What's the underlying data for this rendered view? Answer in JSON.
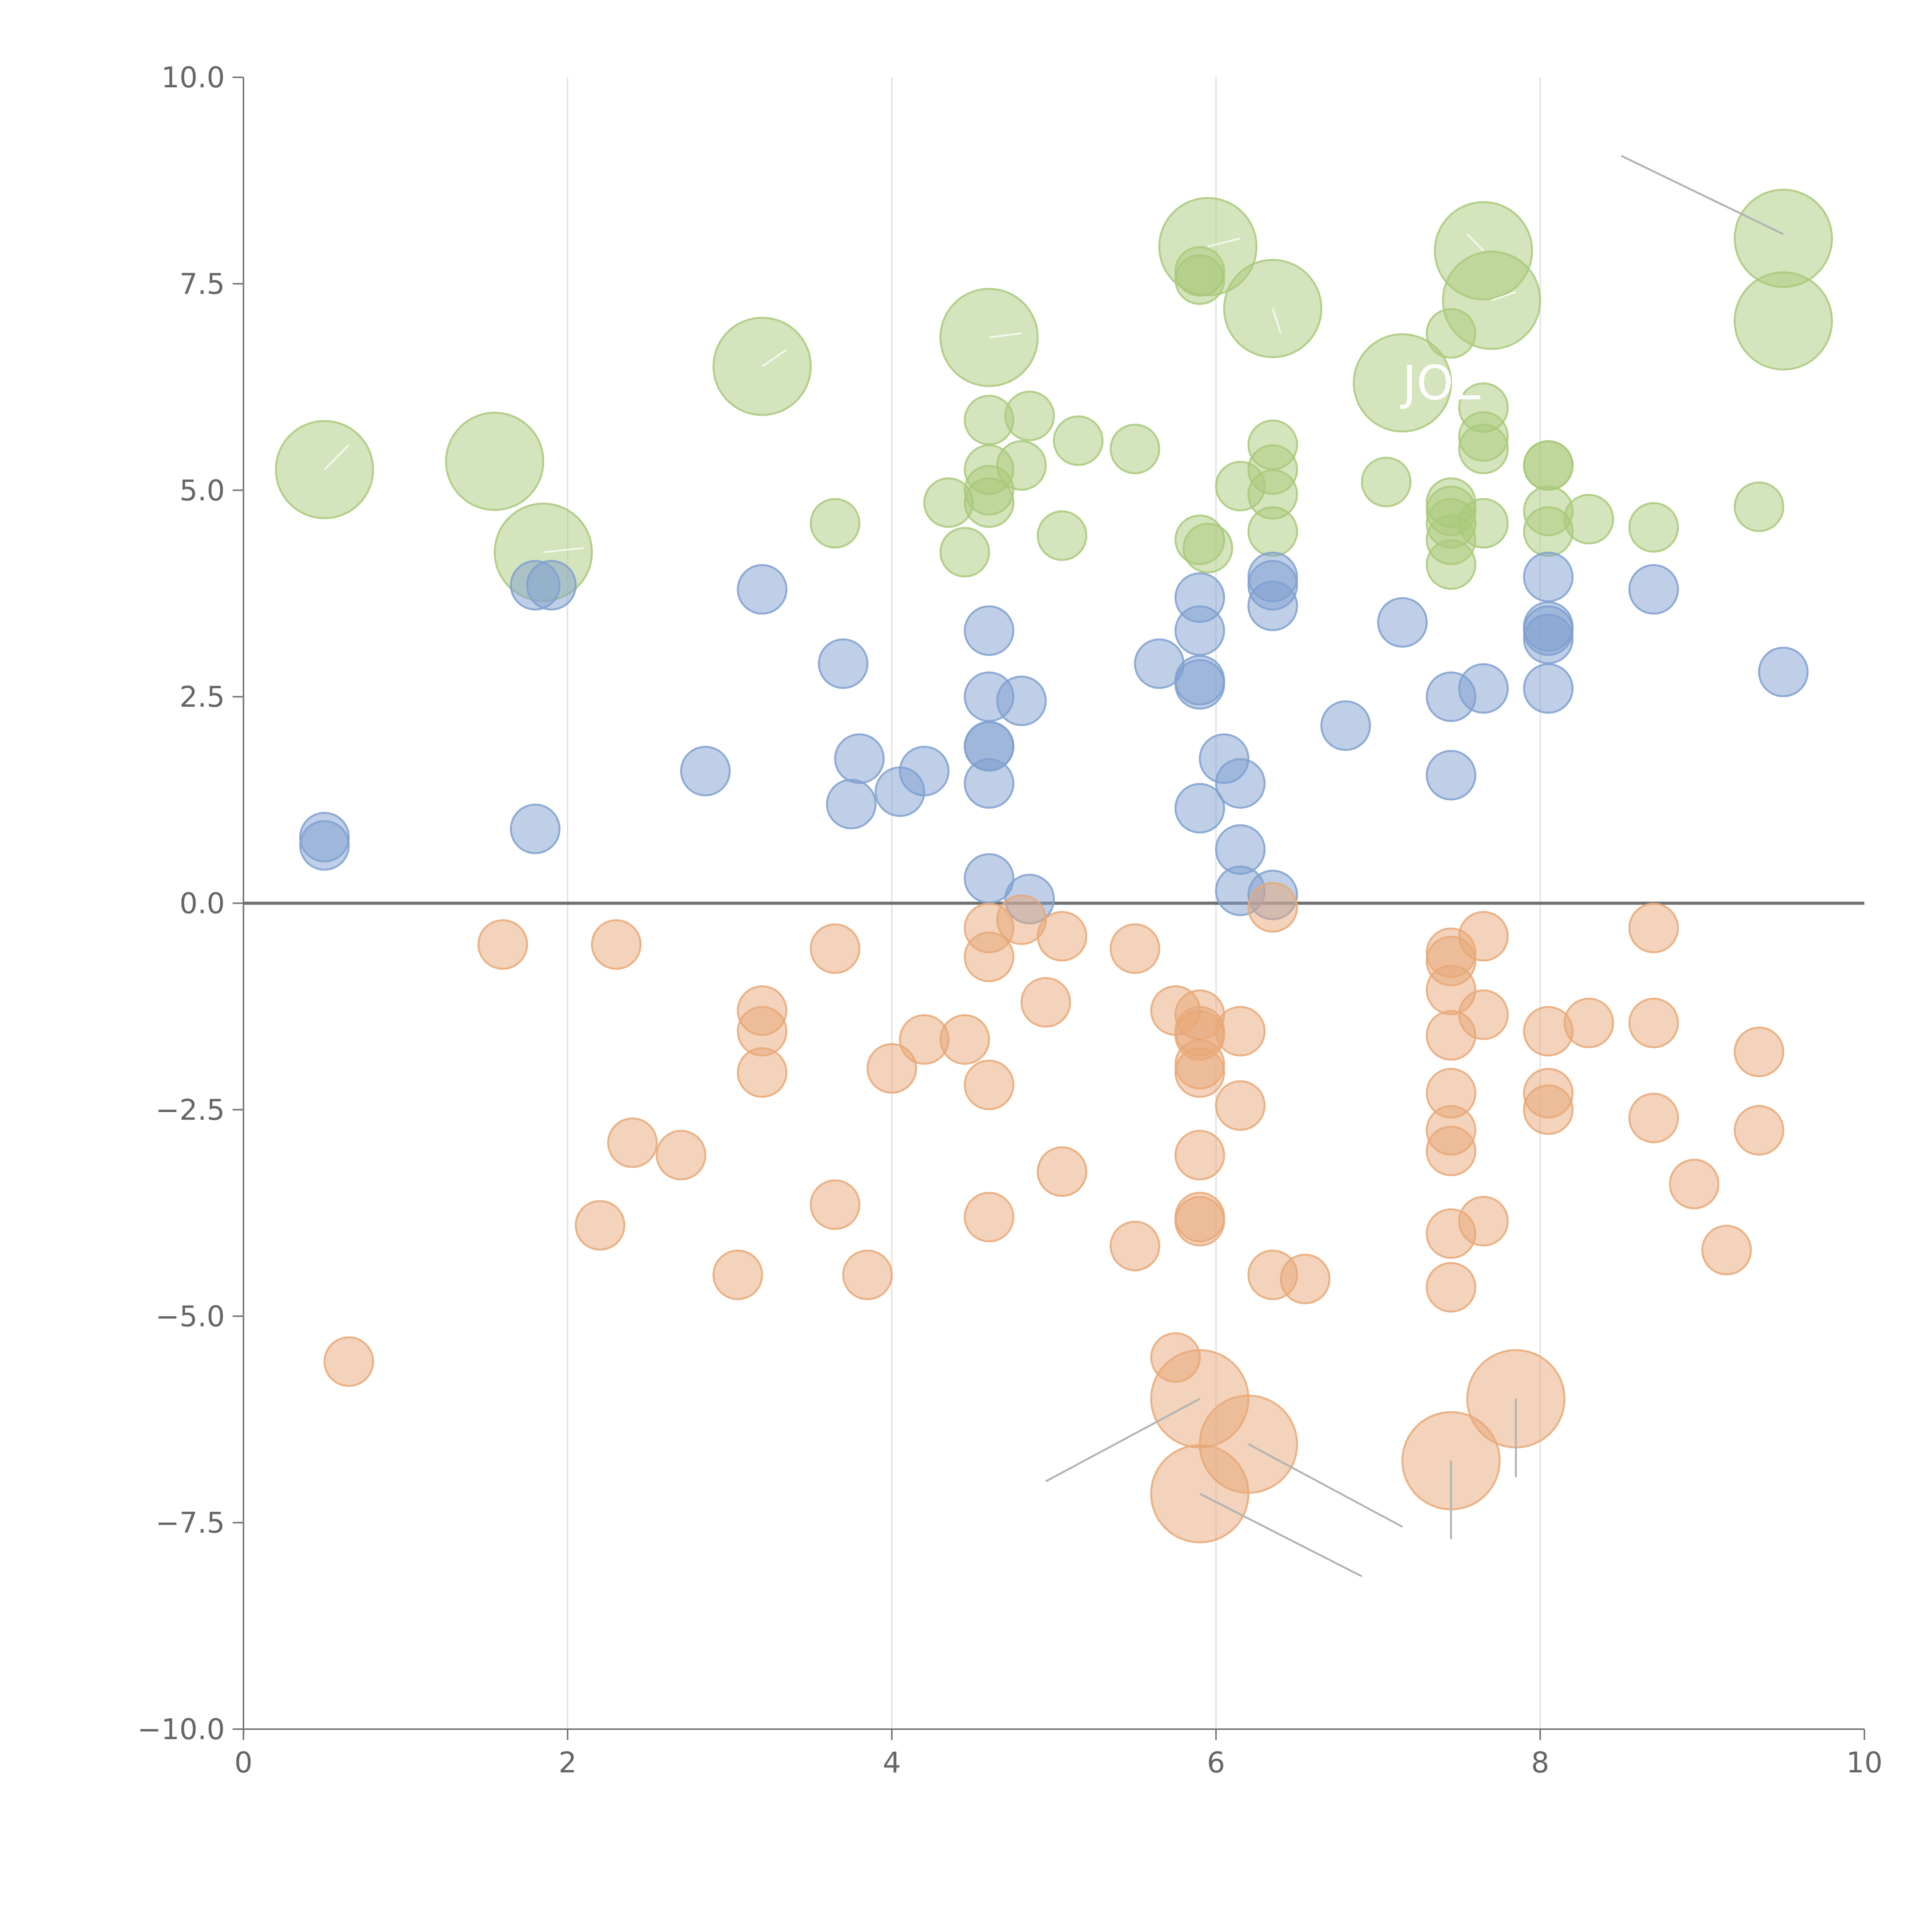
{
  "chart_data": {
    "type": "scatter",
    "title": "",
    "xlabel": "",
    "ylabel": "",
    "xlim": [
      0,
      10
    ],
    "ylim": [
      -10,
      10
    ],
    "grid": "vertical",
    "x_ticks": [
      "0",
      "2",
      "4",
      "6",
      "8",
      "10"
    ],
    "y_ticks": [
      "10.0",
      "7.5",
      "5.0",
      "2.5",
      "0.0",
      "−2.5",
      "−5.0",
      "−7.5",
      "−10.0"
    ],
    "annotations": [
      {
        "text": "JOE",
        "x": 7.4,
        "y": 6.1
      }
    ],
    "series": [
      {
        "name": "green",
        "color": "#a9c97a",
        "points": [
          {
            "x": 0.5,
            "y": 5.25,
            "r": 0.3
          },
          {
            "x": 1.55,
            "y": 5.35,
            "r": 0.3
          },
          {
            "x": 1.85,
            "y": 4.25,
            "r": 0.3
          },
          {
            "x": 3.2,
            "y": 6.5,
            "r": 0.3
          },
          {
            "x": 4.6,
            "y": 6.85,
            "r": 0.3
          },
          {
            "x": 5.95,
            "y": 7.95,
            "r": 0.3
          },
          {
            "x": 6.35,
            "y": 7.2,
            "r": 0.3
          },
          {
            "x": 7.15,
            "y": 6.3,
            "r": 0.3
          },
          {
            "x": 7.65,
            "y": 7.9,
            "r": 0.3
          },
          {
            "x": 7.7,
            "y": 7.3,
            "r": 0.3
          },
          {
            "x": 9.5,
            "y": 8.05,
            "r": 0.3
          },
          {
            "x": 9.5,
            "y": 7.05,
            "r": 0.3
          },
          {
            "x": 3.65,
            "y": 4.6,
            "r": 0.15
          },
          {
            "x": 4.35,
            "y": 4.85,
            "r": 0.15
          },
          {
            "x": 4.45,
            "y": 4.25,
            "r": 0.15
          },
          {
            "x": 4.6,
            "y": 5.85,
            "r": 0.15
          },
          {
            "x": 4.6,
            "y": 5.25,
            "r": 0.15
          },
          {
            "x": 4.6,
            "y": 5.0,
            "r": 0.15
          },
          {
            "x": 4.6,
            "y": 4.85,
            "r": 0.15
          },
          {
            "x": 4.85,
            "y": 5.9,
            "r": 0.15
          },
          {
            "x": 4.8,
            "y": 5.3,
            "r": 0.15
          },
          {
            "x": 5.05,
            "y": 4.45,
            "r": 0.15
          },
          {
            "x": 5.15,
            "y": 5.6,
            "r": 0.15
          },
          {
            "x": 5.5,
            "y": 5.5,
            "r": 0.15
          },
          {
            "x": 5.9,
            "y": 7.65,
            "r": 0.15
          },
          {
            "x": 5.9,
            "y": 7.55,
            "r": 0.15
          },
          {
            "x": 5.9,
            "y": 4.4,
            "r": 0.15
          },
          {
            "x": 5.95,
            "y": 4.3,
            "r": 0.15
          },
          {
            "x": 6.15,
            "y": 5.05,
            "r": 0.15
          },
          {
            "x": 6.35,
            "y": 5.55,
            "r": 0.15
          },
          {
            "x": 6.35,
            "y": 5.25,
            "r": 0.15
          },
          {
            "x": 6.35,
            "y": 4.95,
            "r": 0.15
          },
          {
            "x": 6.35,
            "y": 4.5,
            "r": 0.15
          },
          {
            "x": 7.05,
            "y": 5.1,
            "r": 0.15
          },
          {
            "x": 7.45,
            "y": 6.9,
            "r": 0.15
          },
          {
            "x": 7.45,
            "y": 4.85,
            "r": 0.15
          },
          {
            "x": 7.45,
            "y": 4.75,
            "r": 0.15
          },
          {
            "x": 7.45,
            "y": 4.6,
            "r": 0.15
          },
          {
            "x": 7.45,
            "y": 4.4,
            "r": 0.15
          },
          {
            "x": 7.45,
            "y": 4.1,
            "r": 0.15
          },
          {
            "x": 7.65,
            "y": 6.0,
            "r": 0.15
          },
          {
            "x": 7.65,
            "y": 5.65,
            "r": 0.15
          },
          {
            "x": 7.65,
            "y": 5.5,
            "r": 0.15
          },
          {
            "x": 7.65,
            "y": 4.6,
            "r": 0.15
          },
          {
            "x": 8.05,
            "y": 5.3,
            "r": 0.15
          },
          {
            "x": 8.05,
            "y": 5.3,
            "r": 0.15
          },
          {
            "x": 8.05,
            "y": 4.75,
            "r": 0.15
          },
          {
            "x": 8.05,
            "y": 4.5,
            "r": 0.15
          },
          {
            "x": 8.3,
            "y": 4.65,
            "r": 0.15
          },
          {
            "x": 8.7,
            "y": 4.55,
            "r": 0.15
          },
          {
            "x": 9.35,
            "y": 4.8,
            "r": 0.15
          }
        ]
      },
      {
        "name": "blue",
        "color": "#7fa0d0",
        "points": [
          {
            "x": 0.5,
            "y": 0.8,
            "r": 0.15
          },
          {
            "x": 0.5,
            "y": 0.7,
            "r": 0.15
          },
          {
            "x": 1.8,
            "y": 3.85,
            "r": 0.15
          },
          {
            "x": 1.9,
            "y": 3.85,
            "r": 0.15
          },
          {
            "x": 1.8,
            "y": 0.9,
            "r": 0.15
          },
          {
            "x": 2.85,
            "y": 1.6,
            "r": 0.15
          },
          {
            "x": 3.2,
            "y": 3.8,
            "r": 0.15
          },
          {
            "x": 3.7,
            "y": 2.9,
            "r": 0.15
          },
          {
            "x": 3.8,
            "y": 1.75,
            "r": 0.15
          },
          {
            "x": 3.75,
            "y": 1.2,
            "r": 0.15
          },
          {
            "x": 4.05,
            "y": 1.35,
            "r": 0.15
          },
          {
            "x": 4.2,
            "y": 1.6,
            "r": 0.15
          },
          {
            "x": 4.6,
            "y": 3.3,
            "r": 0.15
          },
          {
            "x": 4.6,
            "y": 2.5,
            "r": 0.15
          },
          {
            "x": 4.8,
            "y": 2.45,
            "r": 0.15
          },
          {
            "x": 4.6,
            "y": 1.9,
            "r": 0.15
          },
          {
            "x": 4.6,
            "y": 1.9,
            "r": 0.15
          },
          {
            "x": 4.6,
            "y": 1.45,
            "r": 0.15
          },
          {
            "x": 4.6,
            "y": 0.3,
            "r": 0.15
          },
          {
            "x": 4.85,
            "y": 0.05,
            "r": 0.15
          },
          {
            "x": 5.65,
            "y": 2.9,
            "r": 0.15
          },
          {
            "x": 5.9,
            "y": 3.7,
            "r": 0.15
          },
          {
            "x": 5.9,
            "y": 3.3,
            "r": 0.15
          },
          {
            "x": 5.9,
            "y": 2.7,
            "r": 0.15
          },
          {
            "x": 5.9,
            "y": 2.65,
            "r": 0.15
          },
          {
            "x": 6.05,
            "y": 1.75,
            "r": 0.15
          },
          {
            "x": 6.15,
            "y": 1.45,
            "r": 0.15
          },
          {
            "x": 5.9,
            "y": 1.15,
            "r": 0.15
          },
          {
            "x": 6.15,
            "y": 0.65,
            "r": 0.15
          },
          {
            "x": 6.15,
            "y": 0.15,
            "r": 0.15
          },
          {
            "x": 6.35,
            "y": 3.95,
            "r": 0.15
          },
          {
            "x": 6.35,
            "y": 3.85,
            "r": 0.15
          },
          {
            "x": 6.35,
            "y": 3.6,
            "r": 0.15
          },
          {
            "x": 6.35,
            "y": 0.1,
            "r": 0.15
          },
          {
            "x": 6.8,
            "y": 2.15,
            "r": 0.15
          },
          {
            "x": 7.15,
            "y": 3.4,
            "r": 0.15
          },
          {
            "x": 7.45,
            "y": 2.5,
            "r": 0.15
          },
          {
            "x": 7.45,
            "y": 1.55,
            "r": 0.15
          },
          {
            "x": 7.65,
            "y": 2.6,
            "r": 0.15
          },
          {
            "x": 8.05,
            "y": 3.95,
            "r": 0.15
          },
          {
            "x": 8.05,
            "y": 3.35,
            "r": 0.15
          },
          {
            "x": 8.05,
            "y": 3.3,
            "r": 0.15
          },
          {
            "x": 8.05,
            "y": 3.2,
            "r": 0.15
          },
          {
            "x": 8.05,
            "y": 2.6,
            "r": 0.15
          },
          {
            "x": 8.7,
            "y": 3.8,
            "r": 0.15
          },
          {
            "x": 9.5,
            "y": 2.8,
            "r": 0.15
          }
        ]
      },
      {
        "name": "orange",
        "color": "#e8a877",
        "points": [
          {
            "x": 0.65,
            "y": -5.55,
            "r": 0.15
          },
          {
            "x": 1.6,
            "y": -0.5,
            "r": 0.15
          },
          {
            "x": 2.3,
            "y": -0.5,
            "r": 0.15
          },
          {
            "x": 2.4,
            "y": -2.9,
            "r": 0.15
          },
          {
            "x": 2.7,
            "y": -3.05,
            "r": 0.15
          },
          {
            "x": 2.2,
            "y": -3.9,
            "r": 0.15
          },
          {
            "x": 3.05,
            "y": -4.5,
            "r": 0.15
          },
          {
            "x": 3.2,
            "y": -1.3,
            "r": 0.15
          },
          {
            "x": 3.2,
            "y": -1.55,
            "r": 0.15
          },
          {
            "x": 3.2,
            "y": -2.05,
            "r": 0.15
          },
          {
            "x": 3.65,
            "y": -0.55,
            "r": 0.15
          },
          {
            "x": 3.65,
            "y": -3.65,
            "r": 0.15
          },
          {
            "x": 3.85,
            "y": -4.5,
            "r": 0.15
          },
          {
            "x": 4.0,
            "y": -2.0,
            "r": 0.15
          },
          {
            "x": 4.2,
            "y": -1.65,
            "r": 0.15
          },
          {
            "x": 4.45,
            "y": -1.65,
            "r": 0.15
          },
          {
            "x": 4.6,
            "y": -0.3,
            "r": 0.15
          },
          {
            "x": 4.6,
            "y": -0.65,
            "r": 0.15
          },
          {
            "x": 4.6,
            "y": -2.2,
            "r": 0.15
          },
          {
            "x": 4.6,
            "y": -3.8,
            "r": 0.15
          },
          {
            "x": 4.8,
            "y": -0.2,
            "r": 0.15
          },
          {
            "x": 4.95,
            "y": -1.2,
            "r": 0.15
          },
          {
            "x": 5.05,
            "y": -0.4,
            "r": 0.15
          },
          {
            "x": 5.05,
            "y": -3.25,
            "r": 0.15
          },
          {
            "x": 5.5,
            "y": -0.55,
            "r": 0.15
          },
          {
            "x": 5.5,
            "y": -4.15,
            "r": 0.15
          },
          {
            "x": 5.75,
            "y": -1.3,
            "r": 0.15
          },
          {
            "x": 5.9,
            "y": -1.35,
            "r": 0.15
          },
          {
            "x": 5.9,
            "y": -1.55,
            "r": 0.15
          },
          {
            "x": 5.9,
            "y": -1.6,
            "r": 0.15
          },
          {
            "x": 5.9,
            "y": -1.95,
            "r": 0.15
          },
          {
            "x": 5.9,
            "y": -2.05,
            "r": 0.15
          },
          {
            "x": 5.9,
            "y": -3.05,
            "r": 0.15
          },
          {
            "x": 5.9,
            "y": -3.8,
            "r": 0.15
          },
          {
            "x": 5.9,
            "y": -3.85,
            "r": 0.15
          },
          {
            "x": 6.15,
            "y": -1.55,
            "r": 0.15
          },
          {
            "x": 6.15,
            "y": -2.45,
            "r": 0.15
          },
          {
            "x": 6.35,
            "y": -0.05,
            "r": 0.15
          },
          {
            "x": 6.35,
            "y": -4.5,
            "r": 0.15
          },
          {
            "x": 6.55,
            "y": -4.55,
            "r": 0.15
          },
          {
            "x": 5.75,
            "y": -5.5,
            "r": 0.15
          },
          {
            "x": 7.45,
            "y": -0.6,
            "r": 0.15
          },
          {
            "x": 7.45,
            "y": -0.7,
            "r": 0.15
          },
          {
            "x": 7.45,
            "y": -1.05,
            "r": 0.15
          },
          {
            "x": 7.45,
            "y": -1.6,
            "r": 0.15
          },
          {
            "x": 7.45,
            "y": -2.3,
            "r": 0.15
          },
          {
            "x": 7.45,
            "y": -2.75,
            "r": 0.15
          },
          {
            "x": 7.45,
            "y": -3.0,
            "r": 0.15
          },
          {
            "x": 7.45,
            "y": -4.0,
            "r": 0.15
          },
          {
            "x": 7.45,
            "y": -4.65,
            "r": 0.15
          },
          {
            "x": 7.65,
            "y": -0.4,
            "r": 0.15
          },
          {
            "x": 7.65,
            "y": -1.35,
            "r": 0.15
          },
          {
            "x": 7.65,
            "y": -3.85,
            "r": 0.15
          },
          {
            "x": 8.05,
            "y": -1.55,
            "r": 0.15
          },
          {
            "x": 8.05,
            "y": -2.3,
            "r": 0.15
          },
          {
            "x": 8.05,
            "y": -2.5,
            "r": 0.15
          },
          {
            "x": 8.3,
            "y": -1.45,
            "r": 0.15
          },
          {
            "x": 8.7,
            "y": -0.3,
            "r": 0.15
          },
          {
            "x": 8.7,
            "y": -1.45,
            "r": 0.15
          },
          {
            "x": 8.7,
            "y": -2.6,
            "r": 0.15
          },
          {
            "x": 8.95,
            "y": -3.4,
            "r": 0.15
          },
          {
            "x": 9.15,
            "y": -4.2,
            "r": 0.15
          },
          {
            "x": 9.35,
            "y": -1.8,
            "r": 0.15
          },
          {
            "x": 9.35,
            "y": -2.75,
            "r": 0.15
          },
          {
            "x": 5.9,
            "y": -6.0,
            "r": 0.3
          },
          {
            "x": 6.2,
            "y": -6.55,
            "r": 0.3
          },
          {
            "x": 5.9,
            "y": -7.15,
            "r": 0.3
          },
          {
            "x": 7.45,
            "y": -6.75,
            "r": 0.3
          },
          {
            "x": 7.85,
            "y": -6.0,
            "r": 0.3
          }
        ]
      }
    ],
    "leader_lines": [
      {
        "x1": 8.5,
        "y1": 9.05,
        "x2": 9.5,
        "y2": 8.1
      },
      {
        "x1": 5.9,
        "y1": -6.0,
        "x2": 4.95,
        "y2": -7.0
      },
      {
        "x1": 6.2,
        "y1": -6.55,
        "x2": 7.15,
        "y2": -7.55
      },
      {
        "x1": 5.9,
        "y1": -7.15,
        "x2": 6.9,
        "y2": -8.15
      },
      {
        "x1": 7.45,
        "y1": -6.75,
        "x2": 7.45,
        "y2": -7.7
      },
      {
        "x1": 7.85,
        "y1": -6.0,
        "x2": 7.85,
        "y2": -6.95
      }
    ],
    "inner_lines": [
      {
        "x1": 0.5,
        "y1": 5.25,
        "x2": 0.65,
        "y2": 5.55
      },
      {
        "x1": 1.85,
        "y1": 4.25,
        "x2": 2.1,
        "y2": 4.3
      },
      {
        "x1": 3.2,
        "y1": 6.5,
        "x2": 3.35,
        "y2": 6.7
      },
      {
        "x1": 4.6,
        "y1": 6.85,
        "x2": 4.8,
        "y2": 6.9
      },
      {
        "x1": 5.95,
        "y1": 7.95,
        "x2": 6.15,
        "y2": 8.05
      },
      {
        "x1": 6.35,
        "y1": 7.2,
        "x2": 6.4,
        "y2": 6.9
      },
      {
        "x1": 7.65,
        "y1": 7.9,
        "x2": 7.55,
        "y2": 8.1
      },
      {
        "x1": 7.7,
        "y1": 7.3,
        "x2": 7.85,
        "y2": 7.4
      }
    ]
  }
}
